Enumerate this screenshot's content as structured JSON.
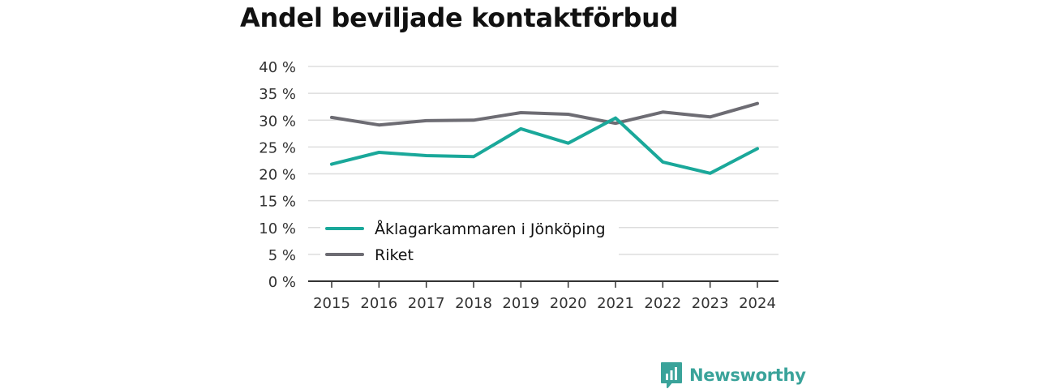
{
  "title": "Andel beviljade kontaktförbud",
  "brand": {
    "name": "Newsworthy",
    "color": "#3aa39a",
    "icon": "bar-chart-speech-bubble-icon"
  },
  "colors": {
    "series1": "#1aa89a",
    "series2": "#6d6c73",
    "grid": "#dddddd",
    "axis": "#333333"
  },
  "chart_data": {
    "type": "line",
    "title": "Andel beviljade kontaktförbud",
    "xlabel": "",
    "ylabel": "",
    "x": [
      2015,
      2016,
      2017,
      2018,
      2019,
      2020,
      2021,
      2022,
      2023,
      2024
    ],
    "x_tick_labels": [
      "2015",
      "2016",
      "2017",
      "2018",
      "2019",
      "2020",
      "2021",
      "2022",
      "2023",
      "2024"
    ],
    "ylim": [
      0,
      40
    ],
    "y_ticks": [
      0,
      5,
      10,
      15,
      20,
      25,
      30,
      35,
      40
    ],
    "y_tick_labels": [
      "0 %",
      "5 %",
      "10 %",
      "15 %",
      "20 %",
      "25 %",
      "30 %",
      "35 %",
      "40 %"
    ],
    "grid": true,
    "legend_position": "bottom-left",
    "series": [
      {
        "name": "Åklagarkammaren i Jönköping",
        "color": "#1aa89a",
        "values": [
          21.8,
          24.0,
          23.4,
          23.2,
          28.4,
          25.7,
          30.4,
          22.2,
          20.1,
          24.7
        ]
      },
      {
        "name": "Riket",
        "color": "#6d6c73",
        "values": [
          30.5,
          29.1,
          29.9,
          30.0,
          31.4,
          31.1,
          29.4,
          31.5,
          30.6,
          33.1
        ]
      }
    ]
  }
}
